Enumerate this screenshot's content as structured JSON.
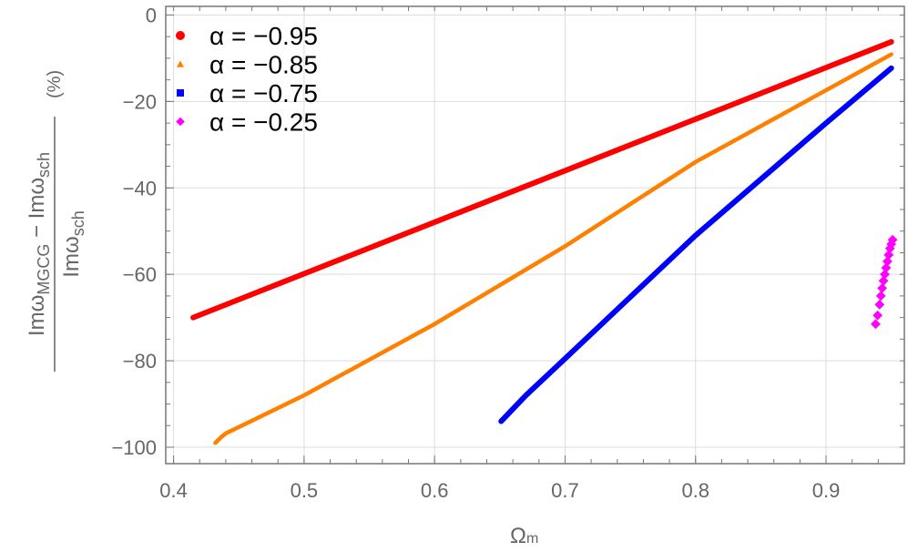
{
  "chart_data": {
    "type": "scatter",
    "xlabel": "Ω",
    "xlabel_sub": "m",
    "ylabel": {
      "num_a": "Imω",
      "num_a_sub": "MGCG",
      "num_mid": " − Imω",
      "num_b_sub": "sch",
      "den": "Imω",
      "den_sub": "sch",
      "unit": "(%)"
    },
    "xlim": [
      0.394,
      0.96
    ],
    "ylim": [
      -103.8,
      2
    ],
    "xticks": [
      "0.4",
      "0.5",
      "0.6",
      "0.7",
      "0.8",
      "0.9"
    ],
    "yticks": [
      "0",
      "−20",
      "−40",
      "−60",
      "−80",
      "−100"
    ],
    "grid": true,
    "legend_position": "top-left",
    "series": [
      {
        "name": "α = −0.95",
        "color": "#ff0000",
        "marker": "circle",
        "points": [
          [
            0.415,
            -70
          ],
          [
            0.95,
            -6.2
          ]
        ]
      },
      {
        "name": "α = −0.85",
        "color": "#ff8000",
        "marker": "triangle",
        "points": [
          [
            0.432,
            -99
          ],
          [
            0.436,
            -97.8
          ],
          [
            0.44,
            -96.8
          ],
          [
            0.5,
            -88
          ],
          [
            0.6,
            -71.5
          ],
          [
            0.7,
            -53.5
          ],
          [
            0.8,
            -34
          ],
          [
            0.95,
            -9.1
          ]
        ]
      },
      {
        "name": "α = −0.75",
        "color": "#0000ff",
        "marker": "square",
        "points": [
          [
            0.651,
            -94
          ],
          [
            0.67,
            -88
          ],
          [
            0.7,
            -79.5
          ],
          [
            0.8,
            -51
          ],
          [
            0.9,
            -25
          ],
          [
            0.95,
            -12.3
          ]
        ]
      },
      {
        "name": "α = −0.25",
        "color": "#ff00ff",
        "marker": "diamond",
        "points": [
          [
            0.938,
            -71.5
          ],
          [
            0.9395,
            -69.5
          ],
          [
            0.941,
            -67
          ],
          [
            0.942,
            -65
          ],
          [
            0.943,
            -63.2
          ],
          [
            0.944,
            -61.5
          ],
          [
            0.945,
            -60
          ],
          [
            0.946,
            -58.5
          ],
          [
            0.947,
            -57
          ],
          [
            0.948,
            -55.5
          ],
          [
            0.949,
            -54
          ],
          [
            0.95,
            -53
          ],
          [
            0.951,
            -52
          ]
        ]
      }
    ]
  }
}
